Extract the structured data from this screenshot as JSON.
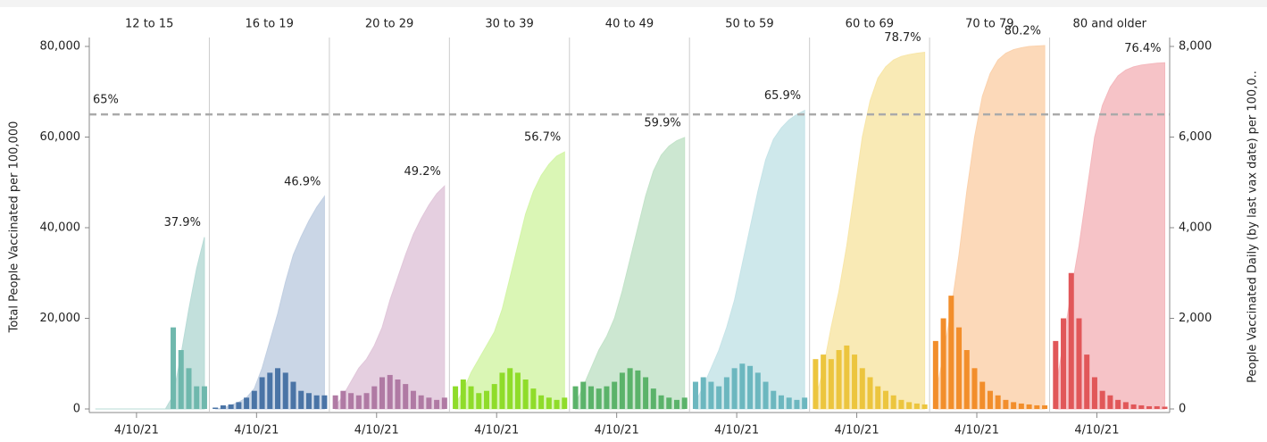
{
  "chart_data": {
    "type": "area",
    "y_label": "Total People Vaccinated per 100,000",
    "y2_label": "People Vaccinated Daily (by last vax date) per 100,0..",
    "x": [
      "3/4/21",
      "3/11/21",
      "3/18/21",
      "3/25/21",
      "4/1/21",
      "4/8/21",
      "4/15/21",
      "4/22/21",
      "4/29/21",
      "5/6/21",
      "5/13/21",
      "5/20/21",
      "5/27/21",
      "6/3/21",
      "6/10/21"
    ],
    "xlim": [
      "3/1/21",
      "6/12/21"
    ],
    "xticks": [
      "4/10/21"
    ],
    "ylim": [
      0,
      80000
    ],
    "yticks": [
      0,
      {
        "value": 20000,
        "label": "20,000"
      },
      {
        "value": 40000,
        "label": "40,000"
      },
      {
        "value": 60000,
        "label": "60,000"
      },
      {
        "value": 80000,
        "label": "80,000"
      }
    ],
    "y2lim": [
      0,
      8000
    ],
    "y2ticks": [
      0,
      {
        "value": 2000,
        "label": "2,000"
      },
      {
        "value": 4000,
        "label": "4,000"
      },
      {
        "value": 6000,
        "label": "6,000"
      },
      {
        "value": 8000,
        "label": "8,000"
      }
    ],
    "reference_line": {
      "value": 65000,
      "label": "65%"
    },
    "panels": [
      {
        "name": "12 to 15",
        "area_color": "#b7dbd6",
        "bar_color": "#6fb8ad",
        "end_label": "37.9%",
        "cumulative": [
          0,
          0,
          0,
          0,
          0,
          0,
          0,
          0,
          0,
          0,
          3000,
          12000,
          22000,
          31000,
          37900
        ],
        "daily": [
          0,
          0,
          0,
          0,
          0,
          0,
          0,
          0,
          0,
          0,
          1800,
          1300,
          900,
          500,
          500
        ]
      },
      {
        "name": "16 to 19",
        "area_color": "#c1cfe2",
        "bar_color": "#4a74a6",
        "end_label": "46.9%",
        "cumulative": [
          0,
          200,
          800,
          1500,
          2500,
          4500,
          9000,
          15000,
          21000,
          28000,
          34000,
          38000,
          41500,
          44500,
          46900
        ],
        "daily": [
          30,
          80,
          100,
          150,
          250,
          400,
          700,
          800,
          900,
          800,
          600,
          400,
          350,
          300,
          300
        ]
      },
      {
        "name": "20 to 29",
        "area_color": "#e1c7da",
        "bar_color": "#b07aa4",
        "end_label": "49.2%",
        "cumulative": [
          500,
          3000,
          6000,
          9000,
          11000,
          14000,
          18000,
          24000,
          29000,
          34000,
          38500,
          42000,
          45000,
          47500,
          49200
        ],
        "daily": [
          300,
          400,
          350,
          300,
          350,
          500,
          700,
          750,
          650,
          550,
          400,
          300,
          250,
          200,
          250
        ]
      },
      {
        "name": "30 to 39",
        "area_color": "#d4f5a8",
        "bar_color": "#8fdc2a",
        "end_label": "56.7%",
        "cumulative": [
          1000,
          4000,
          8000,
          11000,
          14000,
          17000,
          22000,
          29000,
          36000,
          43000,
          48000,
          51500,
          54000,
          55800,
          56700
        ],
        "daily": [
          500,
          650,
          500,
          350,
          400,
          550,
          800,
          900,
          800,
          650,
          450,
          300,
          250,
          200,
          250
        ]
      },
      {
        "name": "40 to 49",
        "area_color": "#c3e3c9",
        "bar_color": "#5bb36a",
        "end_label": "59.9%",
        "cumulative": [
          1000,
          5000,
          9000,
          13000,
          16000,
          20000,
          26000,
          33000,
          40000,
          47000,
          52500,
          56000,
          58000,
          59200,
          59900
        ],
        "daily": [
          500,
          600,
          500,
          450,
          500,
          600,
          800,
          900,
          850,
          700,
          450,
          300,
          250,
          200,
          250
        ]
      },
      {
        "name": "50 to 59",
        "area_color": "#c6e4e8",
        "bar_color": "#6cb7bf",
        "end_label": "65.9%",
        "cumulative": [
          1500,
          5000,
          9000,
          13000,
          18000,
          24000,
          32000,
          40000,
          48000,
          55000,
          59500,
          62000,
          63800,
          65000,
          65900
        ],
        "daily": [
          600,
          700,
          600,
          500,
          700,
          900,
          1000,
          950,
          800,
          600,
          400,
          300,
          250,
          200,
          250
        ]
      },
      {
        "name": "60 to 69",
        "area_color": "#f8e6a8",
        "bar_color": "#ecc53e",
        "end_label": "78.7%",
        "cumulative": [
          2000,
          9000,
          18000,
          26000,
          36000,
          48000,
          60000,
          68000,
          73000,
          75500,
          77000,
          77800,
          78200,
          78500,
          78700
        ],
        "daily": [
          1100,
          1200,
          1100,
          1300,
          1400,
          1200,
          900,
          700,
          500,
          400,
          300,
          200,
          150,
          120,
          100
        ]
      },
      {
        "name": "70 to 79",
        "area_color": "#fbd2ad",
        "bar_color": "#f28e2b",
        "end_label": "80.2%",
        "cumulative": [
          3000,
          12000,
          22000,
          34000,
          48000,
          60000,
          69000,
          74000,
          77000,
          78500,
          79300,
          79700,
          80000,
          80100,
          80200
        ],
        "daily": [
          1500,
          2000,
          2500,
          1800,
          1300,
          900,
          600,
          400,
          300,
          200,
          150,
          120,
          100,
          80,
          80
        ]
      },
      {
        "name": "80 and older",
        "area_color": "#f4b8bd",
        "bar_color": "#e15759",
        "end_label": "76.4%",
        "cumulative": [
          4000,
          15000,
          26000,
          36000,
          48000,
          60000,
          67000,
          71000,
          73500,
          74800,
          75500,
          75900,
          76100,
          76300,
          76400
        ],
        "daily": [
          1500,
          2000,
          3000,
          2000,
          1200,
          700,
          400,
          300,
          200,
          150,
          100,
          80,
          60,
          60,
          50
        ]
      }
    ]
  }
}
